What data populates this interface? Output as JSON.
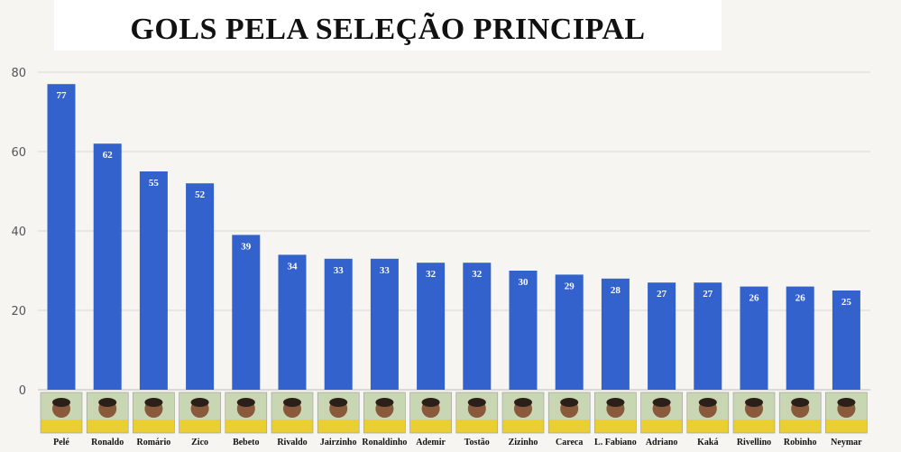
{
  "chart_data": {
    "type": "bar",
    "title": "GOLS PELA SELEÇÃO PRINCIPAL",
    "categories": [
      "Pelé",
      "Ronaldo",
      "Romário",
      "Zico",
      "Bebeto",
      "Rivaldo",
      "Jairzinho",
      "Ronaldinho",
      "Ademir",
      "Tostão",
      "Zizinho",
      "Careca",
      "L. Fabiano",
      "Adriano",
      "Kaká",
      "Rivellino",
      "Robinho",
      "Neymar"
    ],
    "values": [
      77,
      62,
      55,
      52,
      39,
      34,
      33,
      33,
      32,
      32,
      30,
      29,
      28,
      27,
      27,
      26,
      26,
      25
    ],
    "ylim": [
      0,
      80
    ],
    "yticks": [
      0,
      20,
      40,
      60,
      80
    ],
    "grid": true,
    "bar_color": "#3362cc",
    "grid_color": "#d9d9d9",
    "photos": [
      "player-photo",
      "player-photo",
      "player-photo",
      "player-photo",
      "player-photo",
      "player-photo",
      "player-photo",
      "player-photo",
      "player-photo",
      "player-photo",
      "player-photo",
      "player-photo",
      "player-photo",
      "player-photo",
      "player-photo",
      "player-photo",
      "player-photo",
      "player-photo"
    ]
  }
}
